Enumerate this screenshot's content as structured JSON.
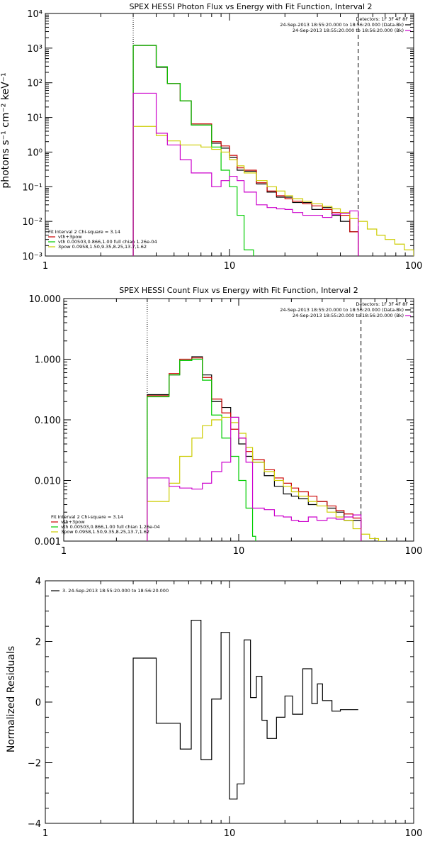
{
  "colors": {
    "total": "#cc0000",
    "thermal": "#00cc00",
    "power": "#cccc00",
    "data": "#000000",
    "background": "#cc00cc"
  },
  "chart_data": [
    {
      "type": "line",
      "title": "SPEX HESSI Photon Flux vs Energy with Fit Function, Interval 2",
      "xlabel": "",
      "ylabel": "photons s⁻¹ cm⁻² keV⁻¹",
      "xscale": "log",
      "yscale": "log",
      "xlim": [
        1,
        100
      ],
      "ylim": [
        0.001,
        10000
      ],
      "x_ticks": [
        "1",
        "10",
        "100"
      ],
      "y_ticks": [
        "10⁻³",
        "10⁻²",
        "10⁻¹",
        "10⁰",
        "10¹",
        "10²",
        "10³",
        "10⁴"
      ],
      "vlines": [
        {
          "x": 3,
          "style": "dotted"
        },
        {
          "x": 50,
          "style": "dashed"
        }
      ],
      "legend_top": {
        "placement": "top-right",
        "header": "Detectors: 1F 3F 4F 8F",
        "entries": [
          {
            "label": "24-Sep-2013 18:55:20.000 to 18:56:20.000 (Data-Bk)",
            "color": "#000000"
          },
          {
            "label": "24-Sep-2013 18:55:20.000 to 18:56:20.000 (Bk)",
            "color": "#cc00cc"
          }
        ]
      },
      "legend_bottom": {
        "placement": "bottom-left",
        "header": "Fit Interval 2   Chi-square = 3.14",
        "entries": [
          {
            "label": "vth+3pow",
            "color": "#cc0000"
          },
          {
            "label": "vth 0.00503,0.866,1.00   full chian 1.26e-04",
            "color": "#00cc00"
          },
          {
            "label": "3pow 0.0958,1.50,9.35,8.25,13.7,1.62",
            "color": "#cccc00"
          }
        ]
      },
      "series": [
        {
          "color": "#000000",
          "step": true,
          "x": [
            3.0,
            3.4,
            4.0,
            4.6,
            5.4,
            6.2,
            7.0,
            8.0,
            9.0,
            10.0,
            11.0,
            12.0,
            14.0,
            16.0,
            18.0,
            20.0,
            22.0,
            25.0,
            28.0,
            32.0,
            36.0,
            40.0,
            45.0,
            50.0
          ],
          "y": [
            1200,
            1200,
            280,
            95,
            30,
            6.0,
            6.0,
            1.8,
            1.3,
            0.7,
            0.3,
            0.28,
            0.12,
            0.07,
            0.05,
            0.05,
            0.035,
            0.035,
            0.022,
            0.025,
            0.015,
            0.01,
            0.005,
            0.005
          ]
        },
        {
          "color": "#cc0000",
          "step": true,
          "x": [
            3.0,
            3.4,
            4.0,
            4.6,
            5.4,
            6.2,
            7.0,
            8.0,
            9.0,
            10.0,
            11.0,
            12.0,
            14.0,
            16.0,
            18.0,
            20.0,
            22.0,
            25.0,
            28.0,
            32.0,
            36.0,
            40.0,
            45.0,
            50.0
          ],
          "y": [
            1200,
            1200,
            290,
            95,
            30,
            6.5,
            6.5,
            2.0,
            1.5,
            0.8,
            0.35,
            0.3,
            0.13,
            0.075,
            0.055,
            0.045,
            0.038,
            0.032,
            0.028,
            0.022,
            0.018,
            0.015,
            0.005,
            0.005
          ]
        },
        {
          "color": "#00cc00",
          "step": true,
          "x": [
            3.0,
            3.4,
            4.0,
            4.6,
            5.4,
            6.2,
            7.0,
            8.0,
            9.0,
            10.0,
            11.0,
            12.0,
            13.5
          ],
          "y": [
            1200,
            1200,
            290,
            95,
            30,
            6.0,
            6.0,
            1.4,
            0.3,
            0.1,
            0.015,
            0.0015,
            0.0015
          ]
        },
        {
          "color": "#cccc00",
          "step": true,
          "x": [
            3.0,
            3.4,
            4.0,
            4.6,
            5.4,
            6.2,
            7.0,
            8.0,
            9.0,
            10.0,
            11.0,
            12.0,
            14.0,
            16.0,
            18.0,
            20.0,
            22.0,
            25.0,
            28.0,
            32.0,
            36.0,
            40.0,
            45.0,
            50.0,
            56.0,
            63.0,
            70.0,
            79.0,
            89.0,
            100.0
          ],
          "y": [
            5.5,
            5.5,
            3.0,
            2.1,
            1.6,
            1.6,
            1.4,
            1.2,
            1.0,
            0.6,
            0.4,
            0.25,
            0.15,
            0.1,
            0.075,
            0.055,
            0.045,
            0.038,
            0.032,
            0.027,
            0.023,
            0.018,
            0.012,
            0.01,
            0.006,
            0.004,
            0.003,
            0.0022,
            0.0015,
            0.0015
          ]
        },
        {
          "color": "#cc00cc",
          "step": true,
          "x": [
            3.0,
            3.4,
            4.0,
            4.6,
            5.4,
            6.2,
            7.0,
            8.0,
            9.0,
            10.0,
            11.0,
            12.0,
            14.0,
            16.0,
            18.0,
            20.0,
            22.0,
            25.0,
            28.0,
            32.0,
            36.0,
            40.0,
            45.0,
            50.0
          ],
          "y": [
            50,
            50,
            3.5,
            1.6,
            0.6,
            0.25,
            0.25,
            0.1,
            0.15,
            0.2,
            0.15,
            0.07,
            0.03,
            0.025,
            0.023,
            0.022,
            0.018,
            0.015,
            0.015,
            0.013,
            0.016,
            0.017,
            0.02,
            0.02
          ]
        }
      ]
    },
    {
      "type": "line",
      "title": "SPEX HESSI Count Flux vs Energy with Fit Function, Interval 2",
      "xlabel": "",
      "ylabel": "",
      "xscale": "log",
      "yscale": "log",
      "xlim": [
        1,
        100
      ],
      "ylim": [
        0.001,
        10
      ],
      "x_ticks": [
        "1",
        "10",
        "100"
      ],
      "y_ticks": [
        "0.001",
        "0.010",
        "0.100",
        "1.000",
        "10.000"
      ],
      "vlines": [
        {
          "x": 3,
          "style": "dotted"
        },
        {
          "x": 50,
          "style": "dashed"
        }
      ],
      "legend_top": {
        "placement": "top-right",
        "header": "Detectors: 1F 3F 4F 8F",
        "entries": [
          {
            "label": "24-Sep-2013 18:55:20.000 to 18:56:20.000 (Data-Bk)",
            "color": "#000000"
          },
          {
            "label": "24-Sep-2013 18:55:20.000 to 18:56:20.000 (Bk)",
            "color": "#cc00cc"
          }
        ]
      },
      "legend_bottom": {
        "placement": "bottom-left",
        "header": "Fit Interval 2   Chi-square = 3.14",
        "entries": [
          {
            "label": "vth+3pow",
            "color": "#cc0000"
          },
          {
            "label": "vth 0.00503,0.866,1.00   full chian 1.26e-04",
            "color": "#00cc00"
          },
          {
            "label": "3pow 0.0958,1.50,9.35,8.25,13.7,1.62",
            "color": "#cccc00"
          }
        ]
      },
      "series": [
        {
          "color": "#000000",
          "step": true,
          "x": [
            3.0,
            3.4,
            4.0,
            4.6,
            5.4,
            6.2,
            7.0,
            8.0,
            9.0,
            10.0,
            11.0,
            12.0,
            14.0,
            16.0,
            18.0,
            20.0,
            22.0,
            25.0,
            28.0,
            32.0,
            36.0,
            40.0,
            45.0,
            50.0
          ],
          "y": [
            0.26,
            0.26,
            0.55,
            0.95,
            1.1,
            0.55,
            0.2,
            0.16,
            0.11,
            0.04,
            0.025,
            0.02,
            0.012,
            0.008,
            0.006,
            0.0055,
            0.005,
            0.004,
            0.0045,
            0.0035,
            0.003,
            0.0022,
            0.0022,
            0.0022
          ]
        },
        {
          "color": "#cc0000",
          "step": true,
          "x": [
            3.0,
            3.4,
            4.0,
            4.6,
            5.4,
            6.2,
            7.0,
            8.0,
            9.0,
            10.0,
            11.0,
            12.0,
            14.0,
            16.0,
            18.0,
            20.0,
            22.0,
            25.0,
            28.0,
            32.0,
            36.0,
            40.0,
            45.0,
            50.0
          ],
          "y": [
            0.25,
            0.25,
            0.58,
            1.0,
            1.05,
            0.5,
            0.22,
            0.13,
            0.07,
            0.05,
            0.03,
            0.022,
            0.015,
            0.011,
            0.009,
            0.0075,
            0.0065,
            0.0055,
            0.0045,
            0.0038,
            0.0032,
            0.0028,
            0.0024,
            0.0024
          ]
        },
        {
          "color": "#00cc00",
          "step": true,
          "x": [
            3.0,
            3.4,
            4.0,
            4.6,
            5.4,
            6.2,
            7.0,
            8.0,
            9.0,
            10.0,
            11.0,
            12.0,
            12.5
          ],
          "y": [
            0.24,
            0.24,
            0.55,
            0.95,
            1.0,
            0.45,
            0.12,
            0.05,
            0.025,
            0.01,
            0.0035,
            0.0012,
            0.0012
          ]
        },
        {
          "color": "#cccc00",
          "step": true,
          "x": [
            3.0,
            3.4,
            4.0,
            4.6,
            5.4,
            6.2,
            7.0,
            8.0,
            9.0,
            10.0,
            11.0,
            12.0,
            14.0,
            16.0,
            18.0,
            20.0,
            22.0,
            25.0,
            28.0,
            32.0,
            36.0,
            40.0,
            45.0,
            50.0,
            56.0,
            63.0,
            70.0
          ],
          "y": [
            0.0045,
            0.0045,
            0.009,
            0.025,
            0.05,
            0.08,
            0.1,
            0.11,
            0.09,
            0.06,
            0.035,
            0.02,
            0.014,
            0.01,
            0.008,
            0.0065,
            0.0055,
            0.0045,
            0.0038,
            0.003,
            0.0025,
            0.0022,
            0.0016,
            0.0013,
            0.0011,
            0.001,
            0.001
          ]
        },
        {
          "color": "#cc00cc",
          "step": true,
          "x": [
            3.0,
            3.4,
            4.0,
            4.6,
            5.4,
            6.2,
            7.0,
            8.0,
            9.0,
            10.0,
            11.0,
            12.0,
            14.0,
            16.0,
            18.0,
            20.0,
            22.0,
            25.0,
            28.0,
            32.0,
            36.0,
            40.0,
            45.0,
            50.0
          ],
          "y": [
            0.011,
            0.011,
            0.008,
            0.0075,
            0.0072,
            0.009,
            0.014,
            0.02,
            0.11,
            0.05,
            0.02,
            0.0035,
            0.0033,
            0.0026,
            0.0025,
            0.0022,
            0.0021,
            0.0025,
            0.0022,
            0.0024,
            0.0023,
            0.0025,
            0.0027,
            0.003
          ]
        }
      ]
    },
    {
      "type": "line",
      "title": "",
      "xlabel": "",
      "ylabel": "Normalized Residuals",
      "xscale": "log",
      "yscale": "linear",
      "xlim": [
        1,
        100
      ],
      "ylim": [
        -4,
        4
      ],
      "x_ticks": [
        "1",
        "10",
        "100"
      ],
      "y_ticks": [
        "−4",
        "−2",
        "0",
        "2",
        "4"
      ],
      "legend_top": {
        "placement": "top-left",
        "entries": [
          {
            "label": "3. 24-Sep-2013 18:55:20.000 to 18:56:20.000",
            "color": "#000000"
          }
        ]
      },
      "series": [
        {
          "color": "#000000",
          "step": true,
          "x": [
            3.0,
            4.0,
            4.6,
            5.4,
            6.2,
            7.0,
            8.0,
            9.0,
            10.0,
            11.0,
            12.0,
            13.0,
            14.0,
            15.0,
            16.0,
            18.0,
            20.0,
            22.0,
            25.0,
            28.0,
            30.0,
            32.0,
            36.0,
            40.0,
            45.0,
            50.0
          ],
          "y": [
            1.45,
            -0.7,
            -0.7,
            -1.55,
            2.7,
            -1.9,
            0.1,
            2.3,
            -3.2,
            -2.7,
            2.05,
            0.15,
            0.85,
            -0.6,
            -1.2,
            -0.5,
            0.2,
            -0.4,
            1.1,
            -0.05,
            0.6,
            0.05,
            -0.3,
            -0.25,
            -0.25,
            -0.25
          ]
        }
      ]
    }
  ]
}
